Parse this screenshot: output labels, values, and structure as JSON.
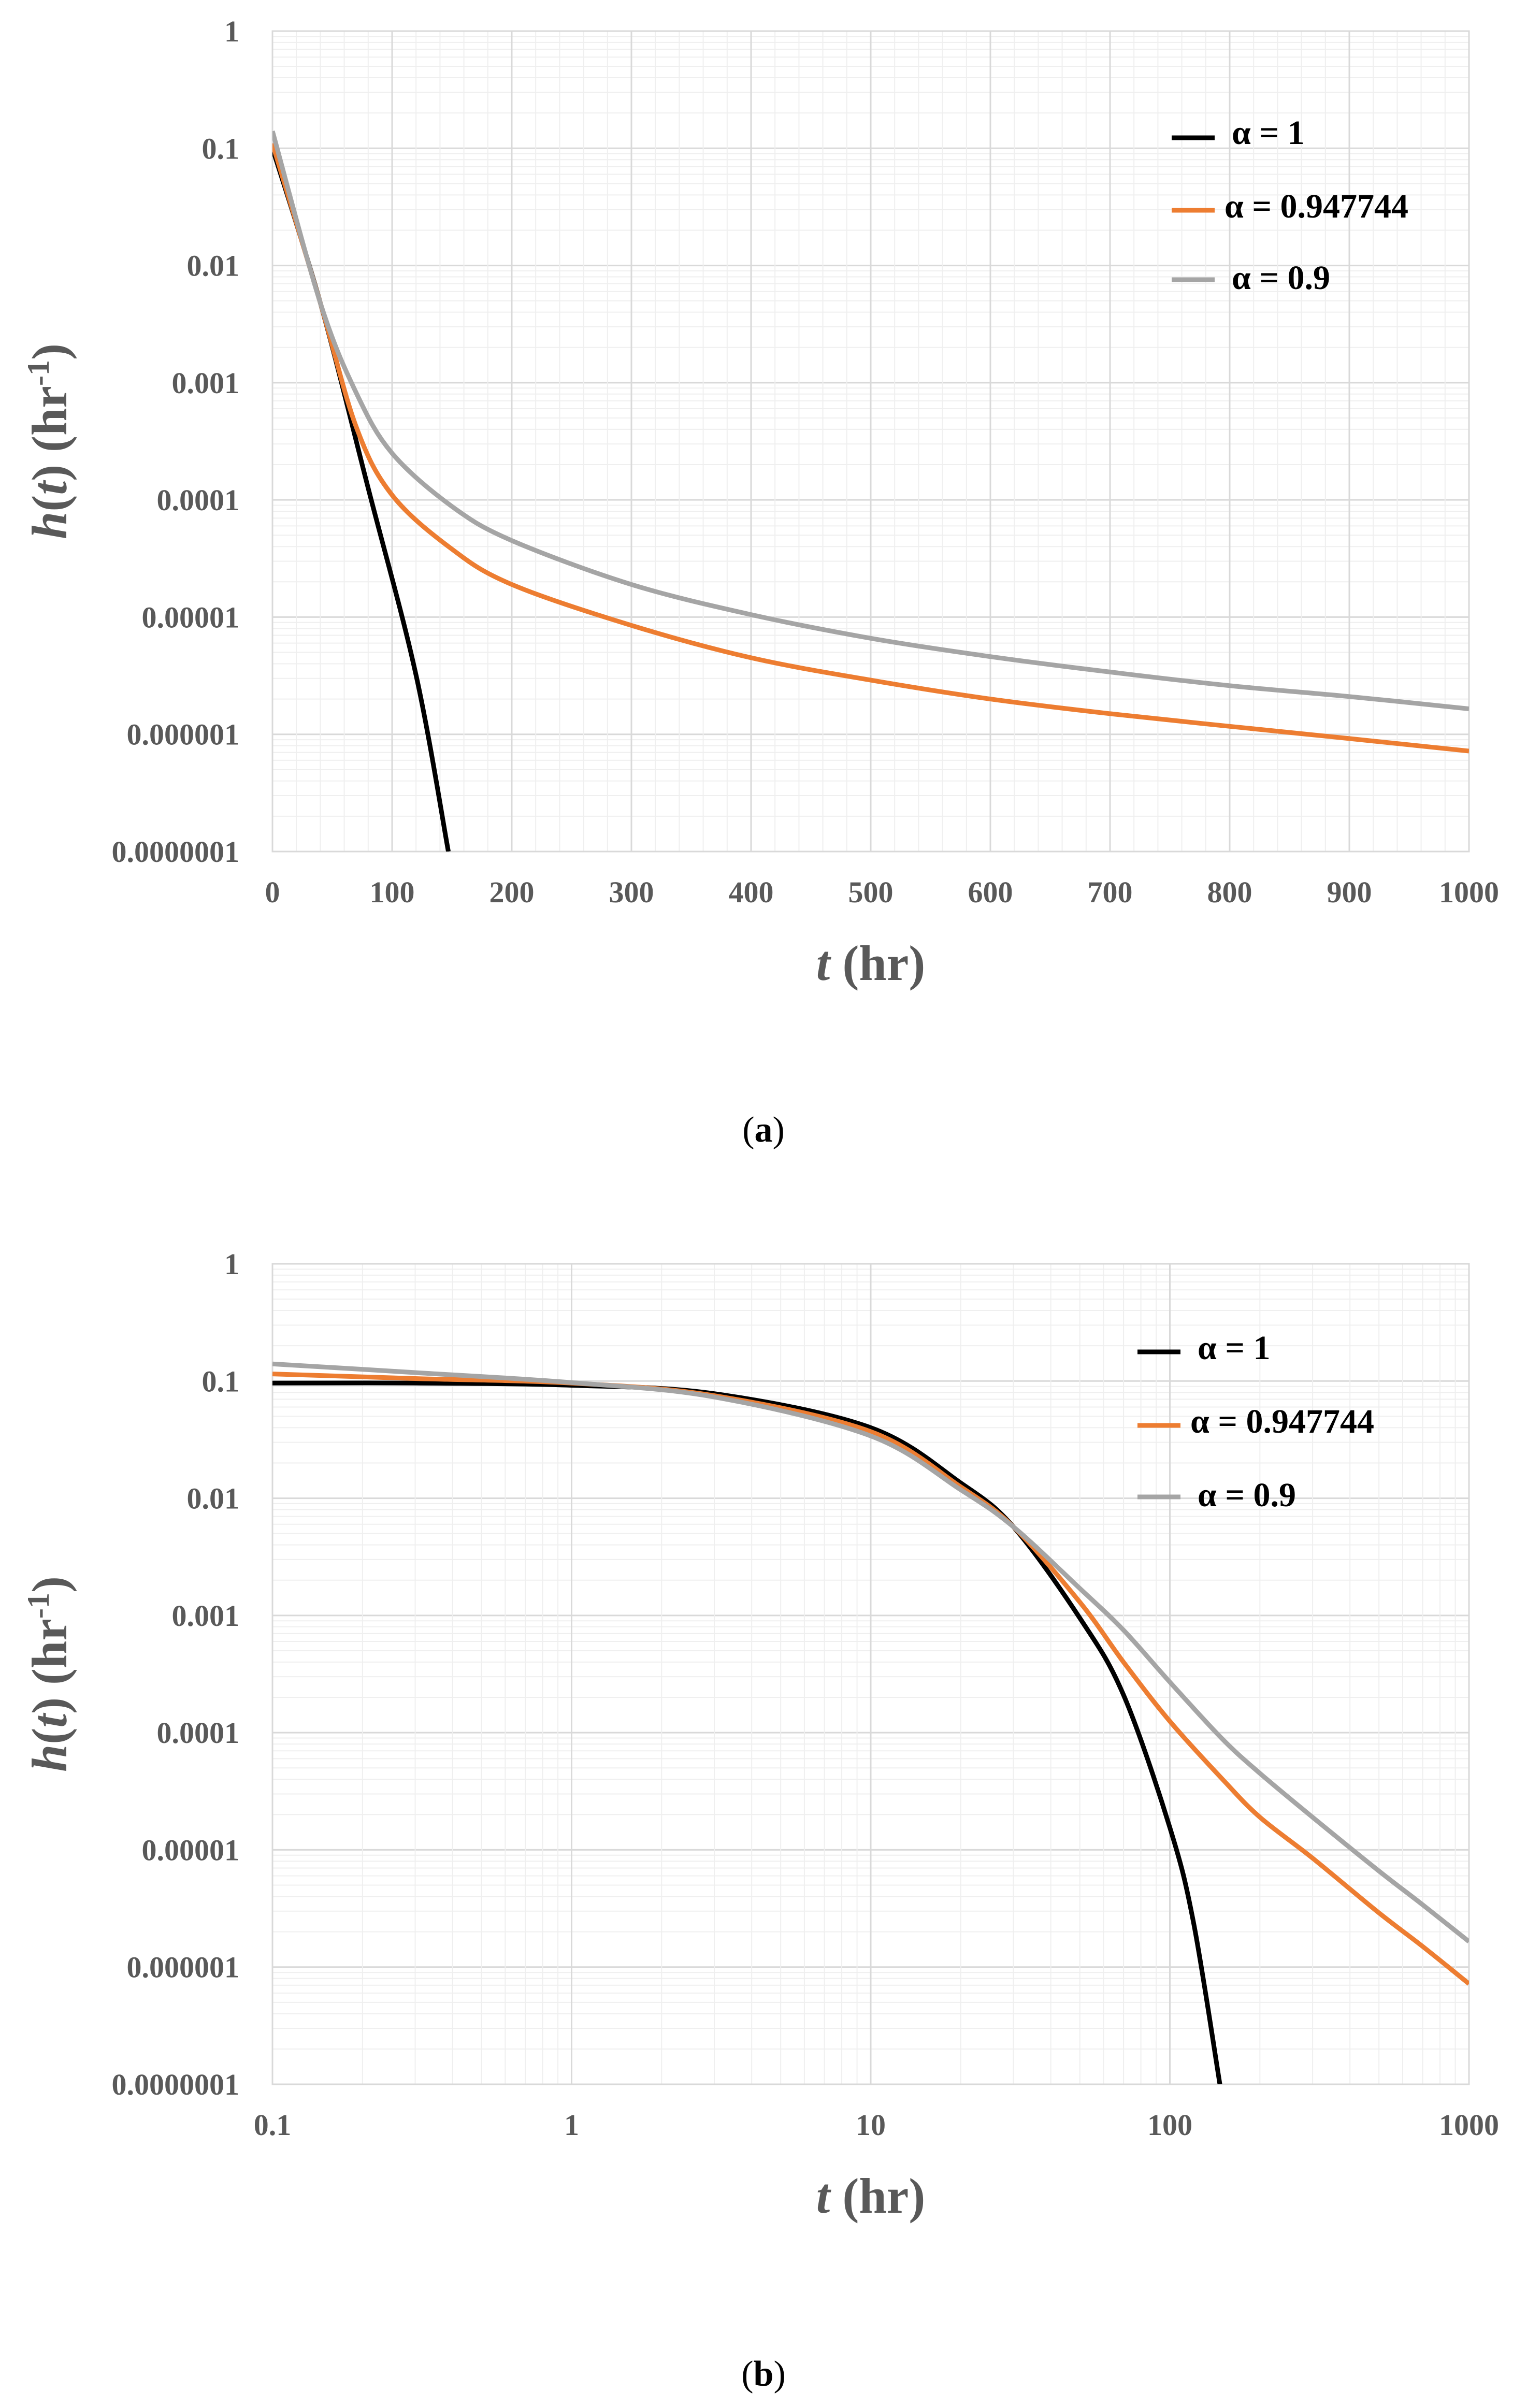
{
  "colors": {
    "alpha1": "#000000",
    "alpha0947744": "#ED7D31",
    "alpha09": "#A5A5A5",
    "grid_major": "#D9D9D9",
    "grid_minor": "#EFEFEF",
    "text": "#595959"
  },
  "chart_data": [
    {
      "type": "line",
      "panel_label": "a",
      "xlabel": "t (hr)",
      "ylabel": "h(t) (hr-1)",
      "xscale": "linear",
      "yscale": "log",
      "xlim": [
        0,
        1000
      ],
      "ylim": [
        1e-07,
        1
      ],
      "x_ticks": [
        "0",
        "100",
        "200",
        "300",
        "400",
        "500",
        "600",
        "700",
        "800",
        "900",
        "1000"
      ],
      "y_ticks": [
        "1",
        "0.1",
        "0.01",
        "0.001",
        "0.0001",
        "0.00001",
        "0.000001",
        "0.0000001"
      ],
      "legend": {
        "position": "top-right",
        "entries": [
          "α = 1",
          "α = 0.947744",
          "α = 0.9"
        ]
      },
      "series": [
        {
          "name": "α = 1",
          "x": [
            0,
            40,
            80,
            120,
            147
          ],
          "y": [
            0.1,
            0.0048,
            0.000126,
            3.2e-06,
            1e-07
          ]
        },
        {
          "name": "α = 0.947744",
          "x": [
            0,
            40,
            70,
            100,
            150,
            200,
            300,
            400,
            500,
            600,
            700,
            800,
            900,
            1000
          ],
          "y": [
            0.11,
            0.0048,
            0.00042,
            0.00011,
            3.8e-05,
            1.9e-05,
            8.5e-06,
            4.5e-06,
            2.9e-06,
            2e-06,
            1.5e-06,
            1.17e-06,
            9.2e-07,
            7.2e-07
          ]
        },
        {
          "name": "α = 0.9",
          "x": [
            0,
            40,
            70,
            100,
            150,
            200,
            300,
            400,
            500,
            600,
            700,
            800,
            900,
            1000
          ],
          "y": [
            0.14,
            0.0048,
            0.00082,
            0.00025,
            8.8e-05,
            4.5e-05,
            1.9e-05,
            1.05e-05,
            6.6e-06,
            4.6e-06,
            3.4e-06,
            2.6e-06,
            2.1e-06,
            1.65e-06
          ]
        }
      ]
    },
    {
      "type": "line",
      "panel_label": "b",
      "xlabel": "t (hr)",
      "ylabel": "h(t) (hr-1)",
      "xscale": "log",
      "yscale": "log",
      "xlim": [
        0.1,
        1000
      ],
      "ylim": [
        1e-07,
        1
      ],
      "x_ticks": [
        "0.1",
        "1",
        "10",
        "100",
        "1000"
      ],
      "y_ticks": [
        "1",
        "0.1",
        "0.01",
        "0.001",
        "0.0001",
        "0.00001",
        "0.000001",
        "0.0000001"
      ],
      "legend": {
        "position": "top-right",
        "entries": [
          "α = 1",
          "α = 0.947744",
          "α = 0.9"
        ]
      },
      "series": [
        {
          "name": "α = 1",
          "x": [
            0.1,
            0.3,
            1,
            3,
            10,
            20,
            30,
            50,
            70,
            100,
            120,
            147
          ],
          "y": [
            0.096,
            0.096,
            0.092,
            0.078,
            0.04,
            0.0135,
            0.0057,
            0.00095,
            0.00021,
            1.55e-05,
            2.4e-06,
            1e-07
          ]
        },
        {
          "name": "α = 0.947744",
          "x": [
            0.1,
            0.3,
            1,
            3,
            10,
            20,
            30,
            50,
            70,
            100,
            150,
            200,
            300,
            500,
            700,
            1000
          ],
          "y": [
            0.115,
            0.105,
            0.096,
            0.075,
            0.037,
            0.0125,
            0.0057,
            0.0013,
            0.0004,
            0.000125,
            4e-05,
            1.9e-05,
            8.5e-06,
            2.9e-06,
            1.5e-06,
            7.2e-07
          ]
        },
        {
          "name": "α = 0.9",
          "x": [
            0.1,
            0.3,
            1,
            3,
            10,
            20,
            30,
            50,
            70,
            100,
            150,
            200,
            300,
            500,
            700,
            1000
          ],
          "y": [
            0.14,
            0.118,
            0.097,
            0.073,
            0.034,
            0.0118,
            0.0057,
            0.0017,
            0.00075,
            0.00027,
            8.8e-05,
            4.5e-05,
            1.9e-05,
            6.6e-06,
            3.4e-06,
            1.65e-06
          ]
        }
      ]
    }
  ]
}
